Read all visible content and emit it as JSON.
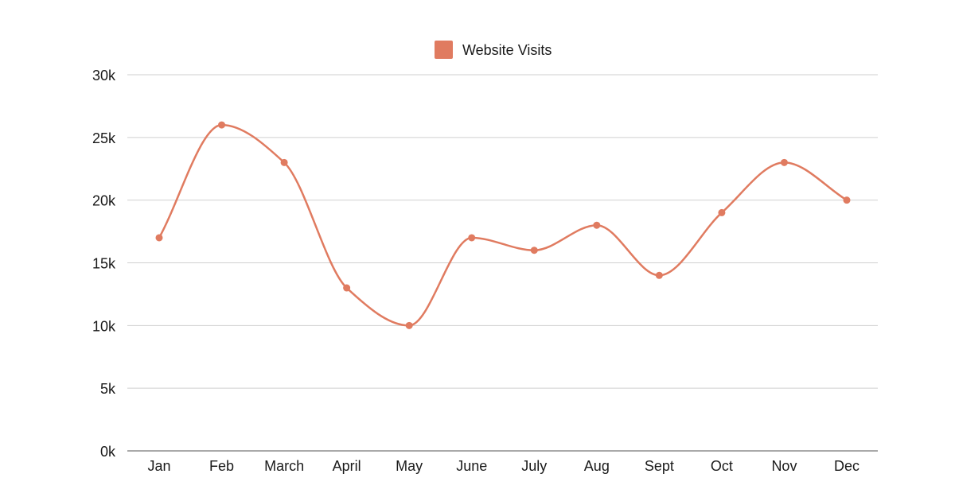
{
  "colors": {
    "series": "#E07B60",
    "grid": "#cfcfcf",
    "axis": "#777777",
    "text": "#1a1a1a"
  },
  "chart_data": {
    "type": "line",
    "smooth": true,
    "title": "",
    "xlabel": "",
    "ylabel": "",
    "categories": [
      "Jan",
      "Feb",
      "March",
      "April",
      "May",
      "June",
      "July",
      "Aug",
      "Sept",
      "Oct",
      "Nov",
      "Dec"
    ],
    "series": [
      {
        "name": "Website Visits",
        "color": "#E07B60",
        "values": [
          17000,
          26000,
          23000,
          13000,
          10000,
          17000,
          16000,
          18000,
          14000,
          19000,
          23000,
          20000
        ]
      }
    ],
    "ylim": [
      0,
      30000
    ],
    "yticks": [
      0,
      5000,
      10000,
      15000,
      20000,
      25000,
      30000
    ],
    "ytick_labels": [
      "0k",
      "5k",
      "10k",
      "15k",
      "20k",
      "25k",
      "30k"
    ],
    "grid": true,
    "legend_position": "top-center"
  }
}
